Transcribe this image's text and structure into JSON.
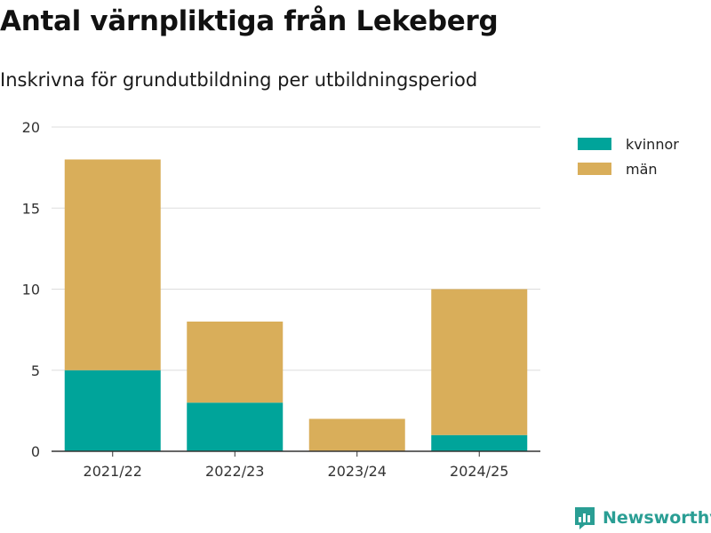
{
  "header": {
    "title": "Antal värnpliktiga från Lekeberg",
    "subtitle": "Inskrivna för grundutbildning per utbildningsperiod"
  },
  "brand": {
    "name": "Newsworthy",
    "icon": "newsworthy-logo-icon",
    "color": "#2a9e94"
  },
  "chart_data": {
    "type": "bar",
    "stacked": true,
    "categories": [
      "2021/22",
      "2022/23",
      "2023/24",
      "2024/25"
    ],
    "series": [
      {
        "name": "kvinnor",
        "color": "#00a49a",
        "values": [
          5,
          3,
          0,
          1
        ]
      },
      {
        "name": "män",
        "color": "#d9ae5a",
        "values": [
          13,
          5,
          2,
          9
        ]
      }
    ],
    "ylim": [
      0,
      20
    ],
    "yticks": [
      0,
      5,
      10,
      15,
      20
    ],
    "grid": true,
    "legend_position": "top-right",
    "xlabel": "",
    "ylabel": ""
  }
}
